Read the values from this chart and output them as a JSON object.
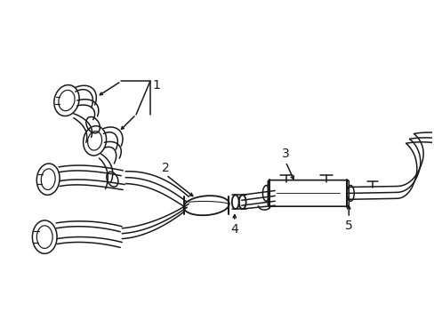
{
  "background_color": "#ffffff",
  "line_color": "#1a1a1a",
  "line_width": 1.1,
  "label_fontsize": 9,
  "fig_width": 4.89,
  "fig_height": 3.6,
  "dpi": 100
}
